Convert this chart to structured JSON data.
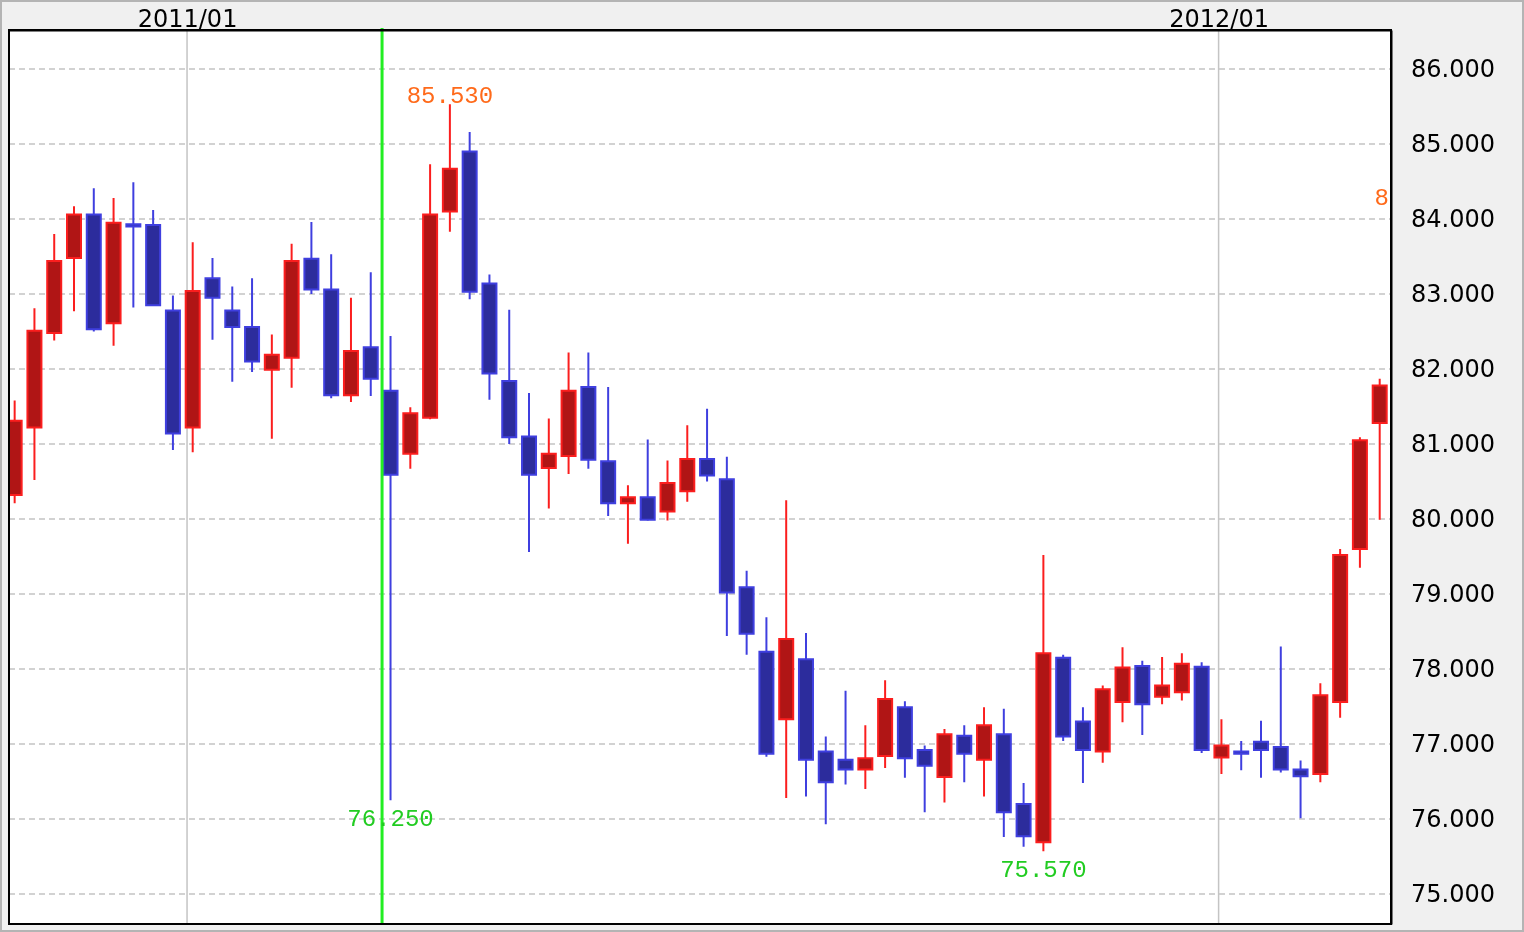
{
  "chart_data": {
    "type": "candlestick",
    "x": [
      "2010-11-01",
      "2010-11-08",
      "2010-11-15",
      "2010-11-22",
      "2010-11-29",
      "2010-12-06",
      "2010-12-13",
      "2010-12-20",
      "2010-12-27",
      "2011-01-03",
      "2011-01-10",
      "2011-01-17",
      "2011-01-24",
      "2011-01-31",
      "2011-02-07",
      "2011-02-14",
      "2011-02-21",
      "2011-02-28",
      "2011-03-07",
      "2011-03-14",
      "2011-03-21",
      "2011-03-28",
      "2011-04-04",
      "2011-04-11",
      "2011-04-18",
      "2011-04-25",
      "2011-05-02",
      "2011-05-09",
      "2011-05-16",
      "2011-05-23",
      "2011-05-30",
      "2011-06-06",
      "2011-06-13",
      "2011-06-20",
      "2011-06-27",
      "2011-07-04",
      "2011-07-11",
      "2011-07-18",
      "2011-07-25",
      "2011-08-01",
      "2011-08-08",
      "2011-08-15",
      "2011-08-22",
      "2011-08-29",
      "2011-09-05",
      "2011-09-12",
      "2011-09-19",
      "2011-09-26",
      "2011-10-03",
      "2011-10-10",
      "2011-10-17",
      "2011-10-24",
      "2011-10-31",
      "2011-11-07",
      "2011-11-14",
      "2011-11-21",
      "2011-11-28",
      "2011-12-05",
      "2011-12-12",
      "2011-12-19",
      "2011-12-26",
      "2012-01-02",
      "2012-01-09",
      "2012-01-16",
      "2012-01-23",
      "2012-01-30",
      "2012-02-06",
      "2012-02-13",
      "2012-02-20",
      "2012-02-27"
    ],
    "ohlc": [
      [
        80.32,
        81.58,
        80.21,
        81.31
      ],
      [
        81.22,
        82.81,
        80.52,
        82.51
      ],
      [
        82.48,
        83.8,
        82.38,
        83.44
      ],
      [
        83.48,
        84.17,
        82.77,
        84.06
      ],
      [
        84.06,
        84.41,
        82.5,
        82.53
      ],
      [
        82.61,
        84.28,
        82.31,
        83.95
      ],
      [
        83.93,
        84.49,
        82.82,
        83.9
      ],
      [
        83.92,
        84.12,
        82.84,
        82.85
      ],
      [
        82.78,
        82.98,
        80.92,
        81.14
      ],
      [
        81.22,
        83.69,
        80.89,
        83.04
      ],
      [
        83.21,
        83.48,
        82.39,
        82.95
      ],
      [
        82.78,
        83.1,
        81.83,
        82.56
      ],
      [
        82.56,
        83.21,
        81.96,
        82.1
      ],
      [
        81.99,
        82.46,
        81.07,
        82.19
      ],
      [
        82.15,
        83.67,
        81.75,
        83.44
      ],
      [
        83.47,
        83.96,
        83.0,
        83.06
      ],
      [
        83.06,
        83.53,
        81.61,
        81.65
      ],
      [
        81.65,
        82.95,
        81.56,
        82.24
      ],
      [
        82.29,
        83.29,
        81.64,
        81.87
      ],
      [
        81.71,
        82.44,
        76.25,
        80.59
      ],
      [
        80.87,
        81.49,
        80.67,
        81.41
      ],
      [
        81.35,
        84.73,
        81.33,
        84.06
      ],
      [
        84.1,
        85.53,
        83.83,
        84.67
      ],
      [
        84.9,
        85.16,
        82.93,
        83.03
      ],
      [
        83.14,
        83.26,
        81.59,
        81.94
      ],
      [
        81.84,
        82.79,
        81.0,
        81.09
      ],
      [
        81.1,
        81.68,
        79.56,
        80.59
      ],
      [
        80.68,
        81.34,
        80.14,
        80.87
      ],
      [
        80.84,
        82.22,
        80.6,
        81.71
      ],
      [
        81.76,
        82.22,
        80.67,
        80.79
      ],
      [
        80.77,
        81.76,
        80.04,
        80.21
      ],
      [
        80.21,
        80.45,
        79.67,
        80.29
      ],
      [
        80.29,
        81.06,
        79.98,
        79.99
      ],
      [
        80.1,
        80.78,
        79.98,
        80.48
      ],
      [
        80.37,
        81.25,
        80.23,
        80.8
      ],
      [
        80.8,
        81.47,
        80.5,
        80.58
      ],
      [
        80.53,
        80.83,
        78.44,
        79.02
      ],
      [
        79.09,
        79.31,
        78.19,
        78.47
      ],
      [
        78.23,
        78.69,
        76.83,
        76.87
      ],
      [
        77.33,
        80.25,
        76.28,
        78.4
      ],
      [
        78.13,
        78.48,
        76.3,
        76.79
      ],
      [
        76.9,
        77.1,
        75.93,
        76.49
      ],
      [
        76.79,
        77.71,
        76.46,
        76.66
      ],
      [
        76.66,
        77.25,
        76.4,
        76.81
      ],
      [
        76.84,
        77.85,
        76.68,
        77.6
      ],
      [
        77.49,
        77.57,
        76.55,
        76.81
      ],
      [
        76.92,
        76.98,
        76.09,
        76.71
      ],
      [
        76.56,
        77.2,
        76.22,
        77.13
      ],
      [
        77.11,
        77.25,
        76.49,
        76.87
      ],
      [
        76.79,
        77.49,
        76.3,
        77.25
      ],
      [
        77.13,
        77.47,
        75.76,
        76.09
      ],
      [
        76.2,
        76.48,
        75.63,
        75.77
      ],
      [
        75.69,
        79.52,
        75.57,
        78.21
      ],
      [
        78.15,
        78.19,
        77.04,
        77.1
      ],
      [
        77.3,
        77.49,
        76.48,
        76.92
      ],
      [
        76.9,
        77.78,
        76.75,
        77.73
      ],
      [
        77.56,
        78.29,
        77.29,
        78.02
      ],
      [
        78.04,
        78.11,
        77.12,
        77.53
      ],
      [
        77.63,
        78.16,
        77.53,
        77.78
      ],
      [
        77.69,
        78.21,
        77.58,
        78.07
      ],
      [
        78.03,
        78.09,
        76.88,
        76.92
      ],
      [
        76.82,
        77.33,
        76.6,
        76.98
      ],
      [
        76.9,
        77.04,
        76.65,
        76.87
      ],
      [
        77.03,
        77.31,
        76.55,
        76.92
      ],
      [
        76.96,
        78.3,
        76.62,
        76.66
      ],
      [
        76.66,
        76.78,
        76.01,
        76.57
      ],
      [
        76.6,
        77.81,
        76.49,
        77.65
      ],
      [
        77.56,
        79.6,
        77.35,
        79.52
      ],
      [
        79.6,
        81.09,
        79.35,
        81.05
      ],
      [
        81.28,
        81.87,
        79.99,
        81.78
      ]
    ],
    "colors": [
      "#b01515",
      "#b01515",
      "#b01515",
      "#b01515",
      "#2c2c9c",
      "#b01515",
      "#2c2c9c",
      "#2c2c9c",
      "#2c2c9c",
      "#b01515",
      "#2c2c9c",
      "#2c2c9c",
      "#2c2c9c",
      "#b01515",
      "#b01515",
      "#2c2c9c",
      "#2c2c9c",
      "#b01515",
      "#2c2c9c",
      "#2c2c9c",
      "#b01515",
      "#b01515",
      "#b01515",
      "#2c2c9c",
      "#2c2c9c",
      "#2c2c9c",
      "#2c2c9c",
      "#b01515",
      "#b01515",
      "#2c2c9c",
      "#2c2c9c",
      "#b01515",
      "#2c2c9c",
      "#b01515",
      "#b01515",
      "#2c2c9c",
      "#2c2c9c",
      "#2c2c9c",
      "#2c2c9c",
      "#b01515",
      "#2c2c9c",
      "#2c2c9c",
      "#2c2c9c",
      "#b01515",
      "#b01515",
      "#2c2c9c",
      "#2c2c9c",
      "#b01515",
      "#2c2c9c",
      "#b01515",
      "#2c2c9c",
      "#2c2c9c",
      "#b01515",
      "#2c2c9c",
      "#2c2c9c",
      "#b01515",
      "#b01515",
      "#2c2c9c",
      "#b01515",
      "#b01515",
      "#2c2c9c",
      "#b01515",
      "#2c2c9c",
      "#2c2c9c",
      "#2c2c9c",
      "#2c2c9c",
      "#b01515",
      "#b01515",
      "#b01515",
      "#b01515"
    ],
    "xlim": [
      "2010-10-30",
      "2012-03-02"
    ],
    "xticks": [
      {
        "value": "2011-01-01",
        "label": "2011/01"
      },
      {
        "value": "2012-01-01",
        "label": "2012/01"
      }
    ],
    "ylim": [
      74.6,
      86.52
    ],
    "yticks": [
      {
        "value": 75,
        "label": "75.000"
      },
      {
        "value": 76,
        "label": "76.000"
      },
      {
        "value": 77,
        "label": "77.000"
      },
      {
        "value": 78,
        "label": "78.000"
      },
      {
        "value": 79,
        "label": "79.000"
      },
      {
        "value": 80,
        "label": "80.000"
      },
      {
        "value": 81,
        "label": "81.000"
      },
      {
        "value": 82,
        "label": "82.000"
      },
      {
        "value": 83,
        "label": "83.000"
      },
      {
        "value": 84,
        "label": "84.000"
      },
      {
        "value": 85,
        "label": "85.000"
      },
      {
        "value": 86,
        "label": "86.000"
      }
    ],
    "grid": true,
    "ref_lines": [
      {
        "axis": "x",
        "value": "2011-03-11",
        "color": "#22ee22"
      }
    ],
    "annotations": [
      {
        "text": "85.530",
        "x": "2011-04-04",
        "y": 85.53
      },
      {
        "text": "76.250",
        "x": "2011-03-14",
        "y": 76.25
      },
      {
        "text": "75.570",
        "x": "2011-10-31",
        "y": 75.57
      },
      "8"
    ]
  }
}
